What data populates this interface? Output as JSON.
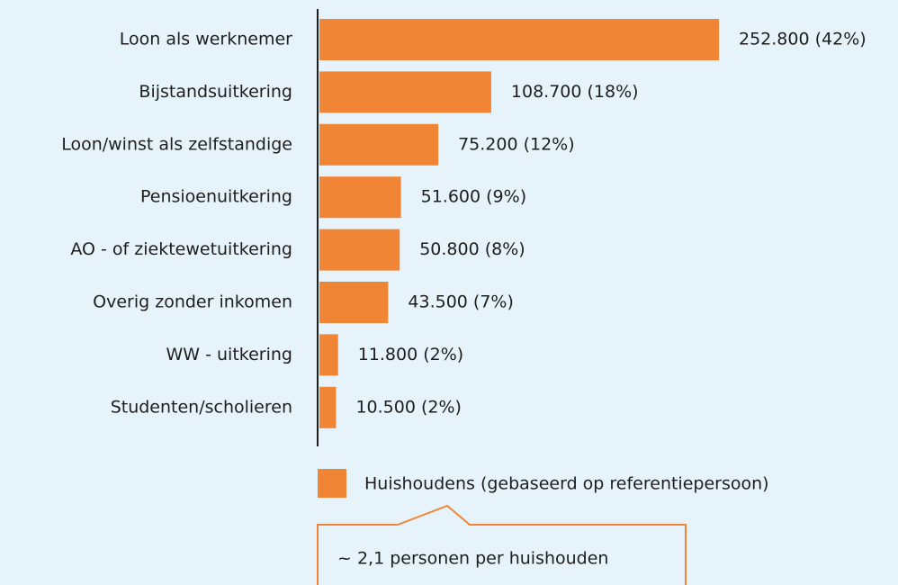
{
  "chart_data": {
    "type": "bar",
    "orientation": "horizontal",
    "categories": [
      "Loon als werknemer",
      "Bijstandsuitkering",
      "Loon/winst als zelfstandige",
      "Pensioenuitkering",
      "AO - of ziektewetuitkering",
      "Overig zonder inkomen",
      "WW - uitkering",
      "Studenten/scholieren"
    ],
    "series": [
      {
        "name": "Huishoudens (gebaseerd op referentiepersoon)",
        "color": "#f08536",
        "values": [
          252800,
          108700,
          75200,
          51600,
          50800,
          43500,
          11800,
          10500
        ],
        "value_labels": [
          "252.800 (42%)",
          "108.700 (18%)",
          "75.200 (12%)",
          "51.600 (9%)",
          "50.800 (8%)",
          "43.500 (7%)",
          "11.800 (2%)",
          "10.500 (2%)"
        ]
      }
    ],
    "annotation": "~ 2,1 personen per huishouden"
  }
}
